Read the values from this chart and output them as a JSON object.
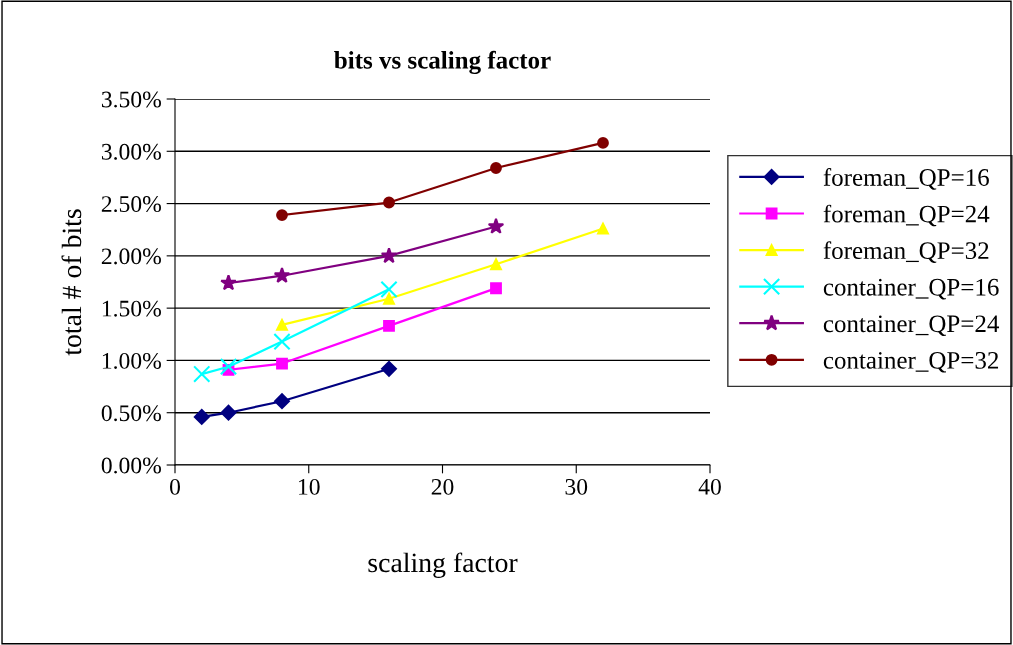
{
  "chart_data": {
    "type": "line",
    "title": "bits vs scaling factor",
    "xlabel": "scaling factor",
    "ylabel": "total # of bits",
    "xlim": [
      0,
      40
    ],
    "xticks": [
      0,
      10,
      20,
      30,
      40
    ],
    "ylim": [
      0,
      3.5
    ],
    "yticks": [
      {
        "value": 0,
        "label": "0.00%"
      },
      {
        "value": 0.5,
        "label": "0.50%"
      },
      {
        "value": 1,
        "label": "1.00%"
      },
      {
        "value": 1.5,
        "label": "1.50%"
      },
      {
        "value": 2,
        "label": "2.00%"
      },
      {
        "value": 2.5,
        "label": "2.50%"
      },
      {
        "value": 3,
        "label": "3.00%"
      },
      {
        "value": 3.5,
        "label": "3.50%"
      }
    ],
    "grid": "y",
    "legend": "right",
    "series": [
      {
        "name": "foreman_QP=16",
        "color": "#000080",
        "marker": "diamond",
        "x": [
          2,
          4,
          8,
          16
        ],
        "values": [
          0.46,
          0.5,
          0.61,
          0.92
        ]
      },
      {
        "name": "foreman_QP=24",
        "color": "#ff00ff",
        "marker": "square",
        "x": [
          4,
          8,
          16,
          24
        ],
        "values": [
          0.91,
          0.97,
          1.33,
          1.69
        ]
      },
      {
        "name": "foreman_QP=32",
        "color": "#ffff00",
        "marker": "triangle",
        "x": [
          8,
          16,
          24,
          32
        ],
        "values": [
          1.34,
          1.59,
          1.92,
          2.26
        ]
      },
      {
        "name": "container_QP=16",
        "color": "#00ffff",
        "marker": "cross",
        "x": [
          2,
          4,
          8,
          16
        ],
        "values": [
          0.87,
          0.94,
          1.18,
          1.68
        ]
      },
      {
        "name": "container_QP=24",
        "color": "#800080",
        "marker": "star",
        "x": [
          4,
          8,
          16,
          24
        ],
        "values": [
          1.74,
          1.81,
          2.0,
          2.28
        ]
      },
      {
        "name": "container_QP=32",
        "color": "#800000",
        "marker": "circle",
        "x": [
          8,
          16,
          24,
          32
        ],
        "values": [
          2.39,
          2.51,
          2.84,
          3.08
        ]
      }
    ]
  }
}
